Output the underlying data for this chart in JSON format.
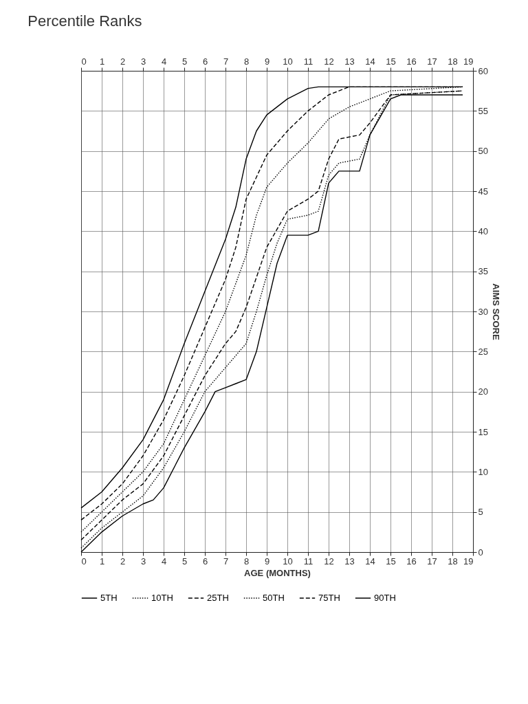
{
  "chart_data": {
    "type": "line",
    "title": "Percentile Ranks",
    "xlabel": "AGE (MONTHS)",
    "ylabel": "AIMS SCORE",
    "xlim": [
      0,
      19
    ],
    "xticks": [
      0,
      1,
      2,
      3,
      4,
      5,
      6,
      7,
      8,
      9,
      10,
      11,
      12,
      13,
      14,
      15,
      16,
      17,
      18,
      19
    ],
    "x2lim": [
      0,
      19
    ],
    "x2ticks": [
      0,
      1,
      2,
      3,
      4,
      5,
      6,
      7,
      8,
      9,
      10,
      11,
      12,
      13,
      14,
      15,
      16,
      17,
      18,
      19
    ],
    "ylim": [
      0,
      60
    ],
    "yticks": [
      0,
      5,
      10,
      15,
      20,
      25,
      30,
      35,
      40,
      45,
      50,
      55,
      60
    ],
    "grid": true,
    "legend": "bottom",
    "marker": "none",
    "series": [
      {
        "name": "5TH",
        "color": "#000000",
        "line_style": "solid",
        "x": [
          0,
          1,
          2,
          3,
          3.5,
          4,
          5,
          6,
          6.5,
          7,
          7.5,
          8,
          8.5,
          9,
          9.5,
          10,
          11,
          11.5,
          12,
          12.5,
          13.5,
          14,
          15,
          15.5,
          18.5
        ],
        "values": [
          0,
          2.5,
          4.5,
          6,
          6.5,
          8,
          13,
          17.5,
          20,
          20.5,
          21,
          21.5,
          25,
          30.5,
          36,
          39.5,
          39.5,
          40,
          46,
          47.5,
          47.5,
          52,
          56.5,
          57,
          57
        ]
      },
      {
        "name": "10TH",
        "color": "#000000",
        "line_style": "dotted",
        "x": [
          0,
          1,
          2,
          3,
          4,
          5,
          6,
          7,
          8,
          8.5,
          9,
          9.5,
          10,
          11,
          11.5,
          12,
          12.5,
          13.5,
          14,
          15,
          18.5
        ],
        "values": [
          0.5,
          3,
          5,
          7,
          10.5,
          15,
          20,
          23,
          26,
          30,
          34.5,
          38.5,
          41.5,
          42,
          42.5,
          47,
          48.5,
          49,
          52,
          57,
          57.5
        ]
      },
      {
        "name": "25TH",
        "color": "#000000",
        "line_style": "dashed",
        "x": [
          0,
          1,
          2,
          3,
          4,
          5,
          6,
          7,
          7.5,
          8,
          9,
          10,
          11,
          11.5,
          12,
          12.5,
          13.5,
          14,
          15,
          18.5
        ],
        "values": [
          1.5,
          4,
          6.5,
          8.5,
          12,
          17,
          22,
          26,
          27.5,
          30.5,
          38,
          42.5,
          44,
          45,
          49,
          51.5,
          52,
          53.5,
          57,
          57.5
        ]
      },
      {
        "name": "50TH",
        "color": "#000000",
        "line_style": "dotted",
        "x": [
          0,
          1,
          2,
          3,
          4,
          5,
          6,
          7,
          8,
          8.5,
          9,
          10,
          11,
          12,
          13,
          14,
          15,
          18.5
        ],
        "values": [
          2.5,
          5,
          7.5,
          10,
          13.5,
          19,
          24.5,
          30,
          37,
          42,
          45.5,
          48.5,
          51,
          54,
          55.5,
          56.5,
          57.5,
          58
        ]
      },
      {
        "name": "75TH",
        "color": "#000000",
        "line_style": "dashed",
        "x": [
          0,
          1,
          2,
          3,
          4,
          5,
          6,
          7,
          7.5,
          8,
          9,
          10,
          11,
          12,
          13,
          18.5
        ],
        "values": [
          4,
          6,
          8.5,
          12,
          16.5,
          22,
          28,
          34,
          38,
          44,
          49.5,
          52.5,
          55,
          57,
          58,
          58
        ]
      },
      {
        "name": "90TH",
        "color": "#000000",
        "line_style": "solid",
        "x": [
          0,
          1,
          2,
          3,
          4,
          5,
          6,
          7,
          7.5,
          8,
          8.5,
          9,
          10,
          11,
          11.5,
          18.5
        ],
        "values": [
          5.5,
          7.5,
          10.5,
          14,
          19,
          26,
          32.5,
          39,
          43,
          49,
          52.5,
          54.5,
          56.5,
          57.8,
          58,
          58
        ]
      }
    ]
  }
}
